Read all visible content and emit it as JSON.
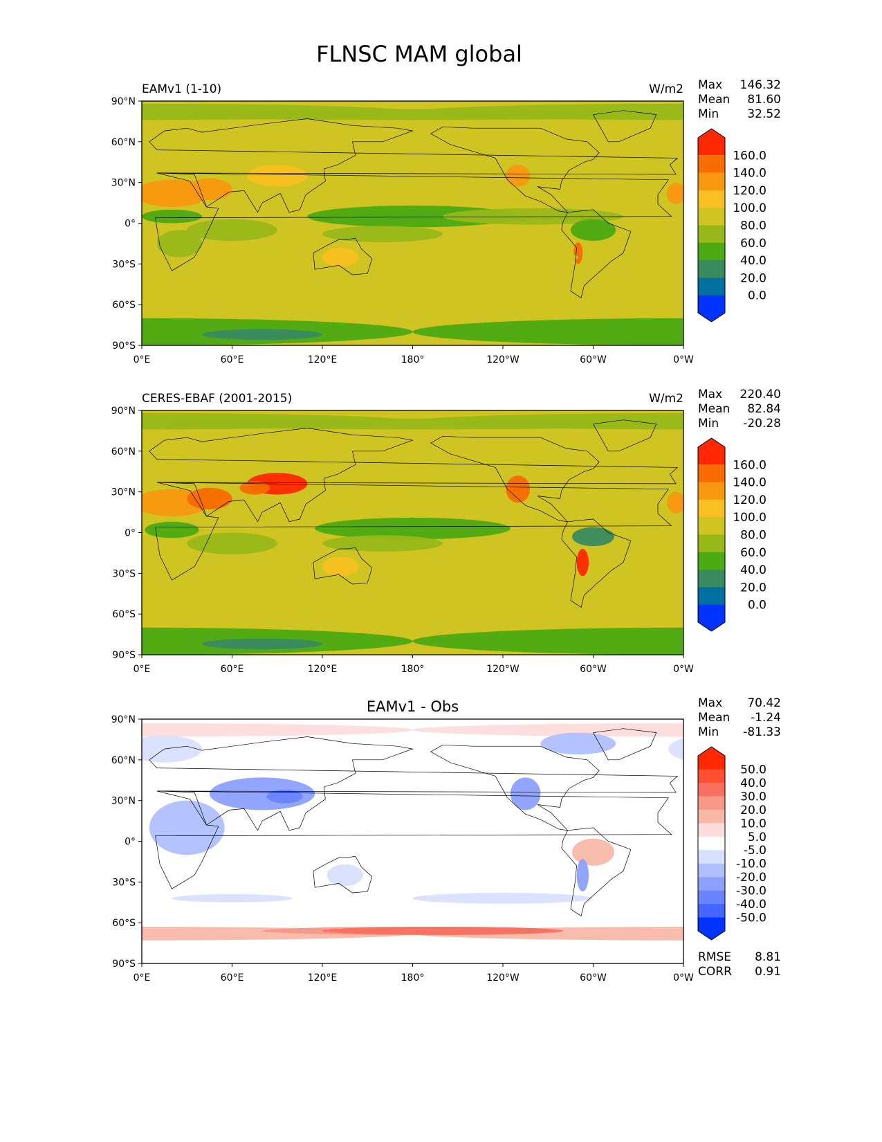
{
  "chart_data": {
    "type": "heatmap",
    "title": "FLNSC MAM global",
    "x_ticks": [
      "0°E",
      "60°E",
      "120°E",
      "180°",
      "120°W",
      "60°W",
      "0°W"
    ],
    "y_ticks": [
      "90°N",
      "60°N",
      "30°N",
      "0°",
      "30°S",
      "60°S",
      "90°S"
    ],
    "panels": [
      {
        "id": "model",
        "left_title": "EAMv1 (1-10)",
        "center_title": "",
        "units": "W/m2",
        "stats": [
          {
            "label": "Max",
            "value": "146.32"
          },
          {
            "label": "Mean",
            "value": "81.60"
          },
          {
            "label": "Min",
            "value": "32.52"
          }
        ],
        "colorbar_labels": [
          "160.0",
          "140.0",
          "120.0",
          "100.0",
          "80.0",
          "60.0",
          "40.0",
          "20.0",
          "0.0"
        ],
        "colorbar_colors": [
          "#ff2800",
          "#f86c00",
          "#f89810",
          "#f8c020",
          "#d0c422",
          "#98b818",
          "#4caa14",
          "#3a8a60",
          "#0070a0",
          "#0033ff"
        ],
        "base_color": "#d0c422"
      },
      {
        "id": "obs",
        "left_title": "CERES-EBAF (2001-2015)",
        "center_title": "",
        "units": "W/m2",
        "stats": [
          {
            "label": "Max",
            "value": "220.40"
          },
          {
            "label": "Mean",
            "value": "82.84"
          },
          {
            "label": "Min",
            "value": "-20.28"
          }
        ],
        "colorbar_labels": [
          "160.0",
          "140.0",
          "120.0",
          "100.0",
          "80.0",
          "60.0",
          "40.0",
          "20.0",
          "0.0"
        ],
        "colorbar_colors": [
          "#ff2800",
          "#f86c00",
          "#f89810",
          "#f8c020",
          "#d0c422",
          "#98b818",
          "#4caa14",
          "#3a8a60",
          "#0070a0",
          "#0033ff"
        ],
        "base_color": "#d0c422"
      },
      {
        "id": "diff",
        "left_title": "",
        "center_title": "EAMv1 - Obs",
        "units": "",
        "stats": [
          {
            "label": "Max",
            "value": "70.42"
          },
          {
            "label": "Mean",
            "value": "-1.24"
          },
          {
            "label": "Min",
            "value": "-81.33"
          }
        ],
        "colorbar_labels": [
          "50.0",
          "40.0",
          "30.0",
          "20.0",
          "10.0",
          "5.0",
          "-5.0",
          "-10.0",
          "-20.0",
          "-30.0",
          "-40.0",
          "-50.0"
        ],
        "colorbar_colors": [
          "#ff2800",
          "#ff5030",
          "#f87060",
          "#f89888",
          "#f8b8a8",
          "#ffdcdc",
          "#ffffff",
          "#d8e0ff",
          "#b0c0ff",
          "#8ca0ff",
          "#6a84ff",
          "#4466ff",
          "#0033ff"
        ],
        "base_color": "#ffffff",
        "metrics": [
          {
            "label": "RMSE",
            "value": "8.81"
          },
          {
            "label": "CORR",
            "value": "0.91"
          }
        ]
      }
    ]
  }
}
